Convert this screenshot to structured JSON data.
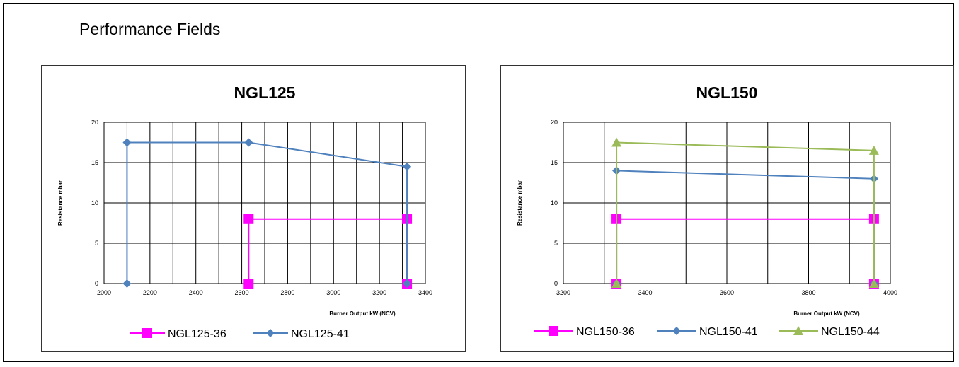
{
  "page_title": "Performance Fields",
  "chart_data": [
    {
      "type": "line",
      "title": "NGL125",
      "xlabel": "Burner Output kW (NCV)",
      "ylabel": "Resistance mbar",
      "xlim": [
        2000,
        3400
      ],
      "ylim": [
        0,
        20
      ],
      "xticks": [
        2000,
        2200,
        2400,
        2600,
        2800,
        3000,
        3200,
        3400
      ],
      "yticks": [
        0,
        5,
        10,
        15,
        20
      ],
      "grid": true,
      "legend_position": "bottom",
      "series": [
        {
          "name": "NGL125-36",
          "color": "#ff00ff",
          "marker": "square",
          "x": [
            2630,
            2630,
            3320,
            3320
          ],
          "y": [
            0,
            8,
            8,
            0
          ]
        },
        {
          "name": "NGL125-41",
          "color": "#4f81bd",
          "marker": "diamond",
          "x": [
            2100,
            2100,
            2630,
            3320,
            3320
          ],
          "y": [
            0,
            17.5,
            17.5,
            14.5,
            0
          ]
        }
      ]
    },
    {
      "type": "line",
      "title": "NGL150",
      "xlabel": "Burner Output kW (NCV)",
      "ylabel": "Resistance mbar",
      "xlim": [
        3200,
        4000
      ],
      "ylim": [
        0,
        20
      ],
      "xticks": [
        3200,
        3400,
        3600,
        3800,
        4000
      ],
      "yticks": [
        0,
        5,
        10,
        15,
        20
      ],
      "grid": true,
      "legend_position": "bottom",
      "series": [
        {
          "name": "NGL150-36",
          "color": "#ff00ff",
          "marker": "square",
          "x": [
            3330,
            3330,
            3960,
            3960
          ],
          "y": [
            0,
            8,
            8,
            0
          ]
        },
        {
          "name": "NGL150-41",
          "color": "#4f81bd",
          "marker": "diamond",
          "x": [
            3330,
            3330,
            3960,
            3960
          ],
          "y": [
            0,
            14,
            13,
            0
          ]
        },
        {
          "name": "NGL150-44",
          "color": "#9bbb59",
          "marker": "triangle",
          "x": [
            3330,
            3330,
            3960,
            3960
          ],
          "y": [
            0,
            17.5,
            16.5,
            0
          ]
        }
      ]
    }
  ]
}
